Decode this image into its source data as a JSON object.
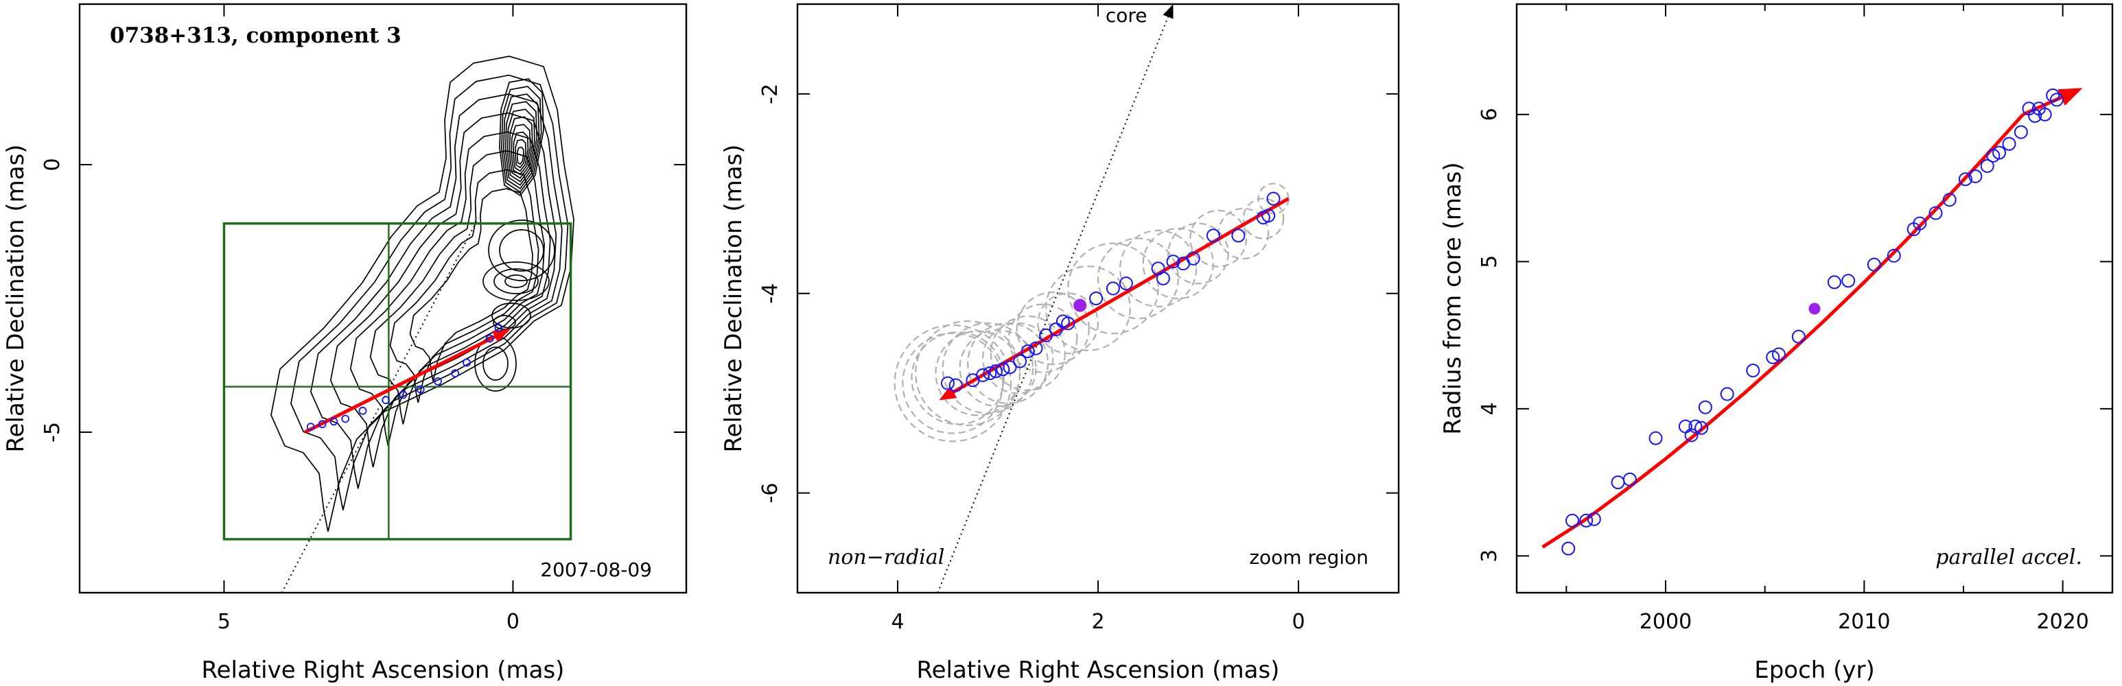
{
  "colors": {
    "contour": "#000000",
    "fit_line": "#ff0000",
    "points": "#1515ff",
    "highlight": "#9b20e8",
    "box": "#1a6b1a",
    "circles": "#b0b0b0"
  },
  "chart_data": [
    {
      "type": "contour",
      "title": "0738+313, component 3",
      "epoch_label": "2007-08-09",
      "xlabel": "Relative Right Ascension (mas)",
      "ylabel": "Relative Declination (mas)",
      "xlim": [
        7.5,
        -3.0
      ],
      "ylim": [
        -8.0,
        3.0
      ],
      "xticks": [
        5,
        0
      ],
      "yticks": [
        0,
        -5
      ],
      "zoom_box": {
        "x": [
          5.0,
          -1.0
        ],
        "y": [
          -1.1,
          -7.0
        ],
        "divider_x": 2.15,
        "divider_y": -4.15
      },
      "core_direction_line": [
        [
          4.0,
          -8.0
        ],
        [
          0.6,
          -1.0
        ]
      ],
      "points": [
        [
          3.5,
          -4.9
        ],
        [
          3.3,
          -4.85
        ],
        [
          3.1,
          -4.8
        ],
        [
          2.9,
          -4.75
        ],
        [
          2.6,
          -4.6
        ],
        [
          2.2,
          -4.4
        ],
        [
          1.9,
          -4.3
        ],
        [
          1.6,
          -4.2
        ],
        [
          1.3,
          -4.05
        ],
        [
          1.0,
          -3.9
        ],
        [
          0.8,
          -3.7
        ],
        [
          0.4,
          -3.25
        ],
        [
          0.25,
          -3.05
        ]
      ],
      "fit_line": [
        [
          3.6,
          -5.0
        ],
        [
          0.1,
          -3.1
        ]
      ]
    },
    {
      "type": "scatter",
      "xlabel": "Relative Right Ascension (mas)",
      "ylabel": "Relative Declination (mas)",
      "xlim": [
        5.0,
        -1.0
      ],
      "ylim": [
        -7.0,
        -1.1
      ],
      "xticks": [
        4,
        2,
        0
      ],
      "yticks": [
        -2,
        -4,
        -6
      ],
      "annotations": {
        "left": "non−radial",
        "right": "zoom region",
        "arrow": "core"
      },
      "core_direction_line": [
        [
          3.6,
          -7.0
        ],
        [
          1.25,
          -1.1
        ]
      ],
      "fit_line": [
        [
          3.55,
          -5.05
        ],
        [
          0.1,
          -3.05
        ]
      ],
      "points": [
        [
          3.5,
          -4.9
        ],
        [
          3.42,
          -4.92
        ],
        [
          3.25,
          -4.87
        ],
        [
          3.15,
          -4.82
        ],
        [
          3.08,
          -4.8
        ],
        [
          3.02,
          -4.78
        ],
        [
          2.95,
          -4.76
        ],
        [
          2.88,
          -4.74
        ],
        [
          2.78,
          -4.68
        ],
        [
          2.7,
          -4.58
        ],
        [
          2.62,
          -4.55
        ],
        [
          2.52,
          -4.42
        ],
        [
          2.42,
          -4.36
        ],
        [
          2.35,
          -4.28
        ],
        [
          2.3,
          -4.3
        ],
        [
          2.02,
          -4.05
        ],
        [
          1.85,
          -3.95
        ],
        [
          1.72,
          -3.9
        ],
        [
          1.4,
          -3.75
        ],
        [
          1.35,
          -3.85
        ],
        [
          1.25,
          -3.68
        ],
        [
          1.15,
          -3.7
        ],
        [
          1.05,
          -3.65
        ],
        [
          0.85,
          -3.42
        ],
        [
          0.6,
          -3.42
        ],
        [
          0.35,
          -3.24
        ],
        [
          0.3,
          -3.22
        ],
        [
          0.25,
          -3.05
        ]
      ],
      "highlight_point": [
        2.18,
        -4.12
      ],
      "circles": [
        [
          3.45,
          -4.9,
          0.58
        ],
        [
          3.45,
          -4.9,
          0.5
        ],
        [
          3.4,
          -4.85,
          0.46
        ],
        [
          3.3,
          -4.8,
          0.52
        ],
        [
          3.2,
          -4.8,
          0.42
        ],
        [
          3.1,
          -4.75,
          0.45
        ],
        [
          3.0,
          -4.75,
          0.38
        ],
        [
          2.9,
          -4.7,
          0.4
        ],
        [
          2.8,
          -4.65,
          0.35
        ],
        [
          2.7,
          -4.6,
          0.37
        ],
        [
          2.55,
          -4.45,
          0.34
        ],
        [
          2.45,
          -4.35,
          0.36
        ],
        [
          2.3,
          -4.3,
          0.3
        ],
        [
          2.1,
          -4.15,
          0.42
        ],
        [
          1.85,
          -3.95,
          0.45
        ],
        [
          1.6,
          -3.85,
          0.4
        ],
        [
          1.4,
          -3.75,
          0.38
        ],
        [
          1.2,
          -3.7,
          0.35
        ],
        [
          1.0,
          -3.6,
          0.3
        ],
        [
          0.8,
          -3.45,
          0.28
        ],
        [
          0.55,
          -3.4,
          0.25
        ],
        [
          0.35,
          -3.25,
          0.2
        ],
        [
          0.25,
          -3.05,
          0.15
        ]
      ]
    },
    {
      "type": "scatter",
      "xlabel": "Epoch (yr)",
      "ylabel": "Radius from core (mas)",
      "xlim": [
        1992.5,
        2022.5
      ],
      "ylim": [
        2.75,
        6.75
      ],
      "xticks": [
        2000,
        2010,
        2020
      ],
      "yticks": [
        3,
        4,
        5,
        6
      ],
      "annotation": "parallel accel.",
      "points": [
        [
          1995.1,
          3.05
        ],
        [
          1995.3,
          3.24
        ],
        [
          1996.0,
          3.24
        ],
        [
          1996.4,
          3.25
        ],
        [
          1997.6,
          3.5
        ],
        [
          1998.2,
          3.52
        ],
        [
          1999.5,
          3.8
        ],
        [
          2001.0,
          3.88
        ],
        [
          2001.3,
          3.82
        ],
        [
          2001.5,
          3.88
        ],
        [
          2001.8,
          3.87
        ],
        [
          2002.0,
          4.01
        ],
        [
          2003.1,
          4.1
        ],
        [
          2004.4,
          4.26
        ],
        [
          2005.4,
          4.35
        ],
        [
          2005.7,
          4.37
        ],
        [
          2006.7,
          4.49
        ],
        [
          2008.5,
          4.86
        ],
        [
          2009.2,
          4.87
        ],
        [
          2010.5,
          4.98
        ],
        [
          2011.5,
          5.04
        ],
        [
          2012.5,
          5.22
        ],
        [
          2012.8,
          5.26
        ],
        [
          2013.6,
          5.33
        ],
        [
          2014.3,
          5.42
        ],
        [
          2015.1,
          5.56
        ],
        [
          2015.6,
          5.58
        ],
        [
          2016.2,
          5.65
        ],
        [
          2016.5,
          5.72
        ],
        [
          2016.8,
          5.74
        ],
        [
          2017.3,
          5.8
        ],
        [
          2017.9,
          5.88
        ],
        [
          2018.3,
          6.04
        ],
        [
          2018.6,
          5.99
        ],
        [
          2018.8,
          6.04
        ],
        [
          2019.1,
          6.0
        ],
        [
          2019.5,
          6.13
        ],
        [
          2019.7,
          6.1
        ]
      ],
      "highlight_point": [
        2007.5,
        4.68
      ],
      "fit_curve": [
        [
          1993.8,
          3.06
        ],
        [
          1996,
          3.25
        ],
        [
          1998,
          3.45
        ],
        [
          2000,
          3.66
        ],
        [
          2002,
          3.88
        ],
        [
          2004,
          4.11
        ],
        [
          2006,
          4.35
        ],
        [
          2008,
          4.6
        ],
        [
          2010,
          4.86
        ],
        [
          2012,
          5.13
        ],
        [
          2014,
          5.41
        ],
        [
          2016,
          5.7
        ],
        [
          2018,
          6.0
        ],
        [
          2021,
          6.18
        ]
      ]
    }
  ]
}
